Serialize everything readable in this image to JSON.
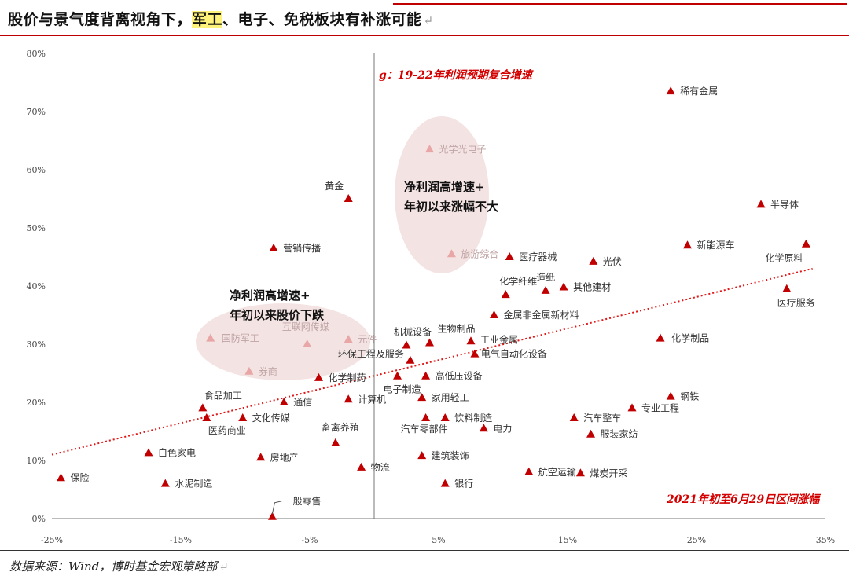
{
  "header": {
    "title_pre": "股价与景气度背离视角下，",
    "title_highlight": "军工",
    "title_post": "、电子、免税板块有补涨可能",
    "title_mark": "↵"
  },
  "footer": {
    "source": "数据来源：Wind，博时基金宏观策略部",
    "source_mark": "↵"
  },
  "colors": {
    "marker": "#c00000",
    "marker_faded": "#e8a6a6",
    "trend": "#e01818",
    "ellipse": "#f2dede"
  },
  "chart_data": {
    "type": "scatter",
    "x_range": [
      -25,
      35
    ],
    "y_range": [
      0,
      80
    ],
    "x_ticks": [
      "-25%",
      "-15%",
      "-5%",
      "5%",
      "15%",
      "25%",
      "35%"
    ],
    "y_ticks": [
      "0%",
      "10%",
      "20%",
      "30%",
      "40%",
      "50%",
      "60%",
      "70%",
      "80%"
    ],
    "axis_title_y": "g：19-22年利润预期复合增速",
    "axis_title_x": "2021年初至6月29日区间涨幅",
    "annotations": [
      {
        "lines": [
          "净利润高增速+",
          "年初以来涨幅不大"
        ]
      },
      {
        "lines": [
          "净利润高增速+",
          "年初以来股价下跌"
        ]
      }
    ],
    "trendline": {
      "style": "dotted",
      "x": [
        -25,
        34
      ],
      "y": [
        11,
        43
      ]
    },
    "points": [
      {
        "label": "稀有金属",
        "x": 23,
        "y": 73.5
      },
      {
        "label": "光学光电子",
        "x": 4.3,
        "y": 63.5,
        "faded": true
      },
      {
        "label": "黄金",
        "x": -2,
        "y": 55
      },
      {
        "label": "半导体",
        "x": 30,
        "y": 54
      },
      {
        "label": "营销传播",
        "x": -7.8,
        "y": 46.5
      },
      {
        "label": "旅游综合",
        "x": 6,
        "y": 45.5,
        "faded": true
      },
      {
        "label": "医疗器械",
        "x": 10.5,
        "y": 45
      },
      {
        "label": "光伏",
        "x": 17,
        "y": 44.2
      },
      {
        "label": "新能源车",
        "x": 24.3,
        "y": 47
      },
      {
        "label": "化学原料",
        "x": 33.5,
        "y": 47.2
      },
      {
        "label": "化学纤维",
        "x": 10.2,
        "y": 38.5
      },
      {
        "label": "造纸",
        "x": 13.3,
        "y": 39.2
      },
      {
        "label": "其他建材",
        "x": 14.7,
        "y": 39.8
      },
      {
        "label": "医疗服务",
        "x": 32,
        "y": 39.5
      },
      {
        "label": "金属非金属新材料",
        "x": 9.3,
        "y": 35
      },
      {
        "label": "机械设备",
        "x": 2.5,
        "y": 29.8
      },
      {
        "label": "生物制品",
        "x": 4.3,
        "y": 30.2
      },
      {
        "label": "工业金属",
        "x": 7.5,
        "y": 30.5
      },
      {
        "label": "化学制品",
        "x": 22.2,
        "y": 31
      },
      {
        "label": "国防军工",
        "x": -12.7,
        "y": 31,
        "faded": true
      },
      {
        "label": "互联网传媒",
        "x": -5.2,
        "y": 30,
        "faded": true
      },
      {
        "label": "元件",
        "x": -2,
        "y": 30.8,
        "faded": true
      },
      {
        "label": "电气自动化设备",
        "x": 7.8,
        "y": 28.3
      },
      {
        "label": "环保工程及服务",
        "x": 2.8,
        "y": 27.2
      },
      {
        "label": "券商",
        "x": -9.7,
        "y": 25.3,
        "faded": true
      },
      {
        "label": "化学制药",
        "x": -4.3,
        "y": 24.2
      },
      {
        "label": "高低压设备",
        "x": 4,
        "y": 24.5
      },
      {
        "label": "电子制造",
        "x": 1.8,
        "y": 24.5
      },
      {
        "label": "家用轻工",
        "x": 3.7,
        "y": 20.8
      },
      {
        "label": "计算机",
        "x": -2,
        "y": 20.5
      },
      {
        "label": "钢铁",
        "x": 23,
        "y": 21
      },
      {
        "label": "食品加工",
        "x": -13.3,
        "y": 19
      },
      {
        "label": "通信",
        "x": -7,
        "y": 20
      },
      {
        "label": "专业工程",
        "x": 20,
        "y": 19
      },
      {
        "label": "文化传媒",
        "x": -10.2,
        "y": 17.3
      },
      {
        "label": "医药商业",
        "x": -13,
        "y": 17.3
      },
      {
        "label": "饮料制造",
        "x": 5.5,
        "y": 17.3
      },
      {
        "label": "汽车零部件",
        "x": 4,
        "y": 17.3
      },
      {
        "label": "汽车整车",
        "x": 15.5,
        "y": 17.3
      },
      {
        "label": "电力",
        "x": 8.5,
        "y": 15.5
      },
      {
        "label": "服装家纺",
        "x": 16.8,
        "y": 14.5
      },
      {
        "label": "畜禽养殖",
        "x": -3,
        "y": 13
      },
      {
        "label": "白色家电",
        "x": -17.5,
        "y": 11.3
      },
      {
        "label": "建筑装饰",
        "x": 3.7,
        "y": 10.8
      },
      {
        "label": "房地产",
        "x": -8.8,
        "y": 10.5
      },
      {
        "label": "物流",
        "x": -1,
        "y": 8.8
      },
      {
        "label": "航空运输",
        "x": 12,
        "y": 8
      },
      {
        "label": "煤炭开采",
        "x": 16,
        "y": 7.8
      },
      {
        "label": "保险",
        "x": -24.3,
        "y": 7
      },
      {
        "label": "水泥制造",
        "x": -16.2,
        "y": 6
      },
      {
        "label": "银行",
        "x": 5.5,
        "y": 6
      },
      {
        "label": "一般零售",
        "x": -7.9,
        "y": 0.3
      }
    ]
  }
}
